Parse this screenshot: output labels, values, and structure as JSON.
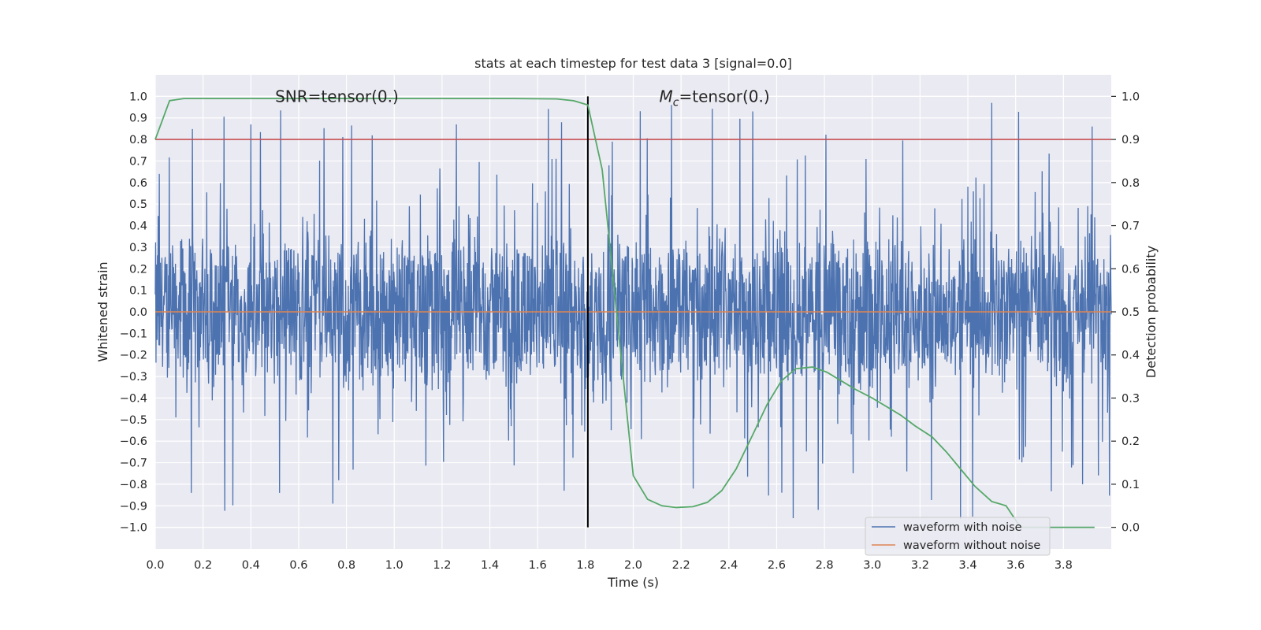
{
  "chart_data": {
    "type": "line",
    "title": "stats at each timestep for test data 3 [signal=0.0]",
    "xlabel": "Time (s)",
    "ylabel": "Whitened strain",
    "ylabel_right": "Detection probability",
    "xlim": [
      0.0,
      4.0
    ],
    "ylim": [
      -1.1,
      1.1
    ],
    "ylim_right": [
      -0.05,
      1.05
    ],
    "x_ticks": [
      0.0,
      0.2,
      0.4,
      0.6,
      0.8,
      1.0,
      1.2,
      1.4,
      1.6,
      1.8,
      2.0,
      2.2,
      2.4,
      2.6,
      2.8,
      3.0,
      3.2,
      3.4,
      3.6,
      3.8
    ],
    "y_ticks": [
      -1.0,
      -0.9,
      -0.8,
      -0.7,
      -0.6,
      -0.5,
      -0.4,
      -0.3,
      -0.2,
      -0.1,
      0.0,
      0.1,
      0.2,
      0.3,
      0.4,
      0.5,
      0.6,
      0.7,
      0.8,
      0.9,
      1.0
    ],
    "y_ticks_right": [
      0.0,
      0.1,
      0.2,
      0.3,
      0.4,
      0.5,
      0.6,
      0.7,
      0.8,
      0.9,
      1.0
    ],
    "grid": true,
    "legend_position": "lower-right",
    "annotations": {
      "snr": {
        "prefix": "SNR=tensor(0.)",
        "x": 0.76,
        "y": 1.0
      },
      "mc": {
        "symbol": "M",
        "subscript": "c",
        "suffix": "=tensor(0.)",
        "x": 2.34,
        "y": 1.0
      }
    },
    "noise_series": {
      "name": "waveform with noise",
      "color": "#4c72b0",
      "x_start": 0.0,
      "x_end": 4.0,
      "core_amplitude": 0.38,
      "spike_max": 0.97,
      "spike_min": -0.95,
      "notable_peaks": [
        {
          "x": 0.4,
          "y": 0.87
        },
        {
          "x": 1.26,
          "y": 0.87
        },
        {
          "x": 1.7,
          "y": 0.88
        },
        {
          "x": 2.16,
          "y": 0.96
        },
        {
          "x": 2.5,
          "y": 0.93
        },
        {
          "x": 3.5,
          "y": 0.97
        },
        {
          "x": 3.92,
          "y": 0.86
        }
      ],
      "notable_troughs": [
        {
          "x": 0.15,
          "y": -0.84
        },
        {
          "x": 0.52,
          "y": -0.84
        },
        {
          "x": 1.71,
          "y": -0.83
        },
        {
          "x": 2.25,
          "y": -0.82
        },
        {
          "x": 3.42,
          "y": -0.95
        },
        {
          "x": 3.88,
          "y": -0.8
        }
      ]
    },
    "clean_series": {
      "name": "waveform without noise",
      "color": "#dd8452",
      "x": [
        0.0,
        4.0
      ],
      "y": [
        0.0,
        0.0
      ]
    },
    "probability_series": {
      "color": "#55a868",
      "axis": "right",
      "x": [
        0.0,
        0.06,
        0.12,
        0.18,
        0.25,
        0.5,
        1.0,
        1.5,
        1.68,
        1.75,
        1.81,
        1.87,
        1.93,
        2.0,
        2.06,
        2.12,
        2.18,
        2.25,
        2.31,
        2.37,
        2.43,
        2.5,
        2.56,
        2.62,
        2.68,
        2.75,
        2.81,
        2.87,
        2.93,
        3.0,
        3.06,
        3.12,
        3.18,
        3.25,
        3.31,
        3.37,
        3.43,
        3.5,
        3.56,
        3.62,
        3.68,
        3.75,
        3.81,
        3.87,
        3.93
      ],
      "y": [
        0.9,
        0.99,
        0.995,
        0.995,
        0.995,
        0.995,
        0.995,
        0.995,
        0.994,
        0.99,
        0.98,
        0.83,
        0.5,
        0.12,
        0.065,
        0.05,
        0.046,
        0.048,
        0.058,
        0.085,
        0.135,
        0.215,
        0.285,
        0.34,
        0.368,
        0.372,
        0.36,
        0.34,
        0.32,
        0.3,
        0.28,
        0.26,
        0.235,
        0.21,
        0.175,
        0.135,
        0.095,
        0.06,
        0.05,
        0.0,
        0.0,
        0.0,
        0.0,
        0.0,
        0.0
      ]
    },
    "threshold_line": {
      "color": "#c44e52",
      "axis": "right",
      "y": 0.9
    },
    "vertical_marker": {
      "color": "#000000",
      "x": 1.81,
      "y_from": -1.0,
      "y_to": 1.0
    },
    "legend": [
      {
        "label": "waveform with noise",
        "color": "#4c72b0"
      },
      {
        "label": "waveform without noise",
        "color": "#dd8452"
      }
    ]
  }
}
